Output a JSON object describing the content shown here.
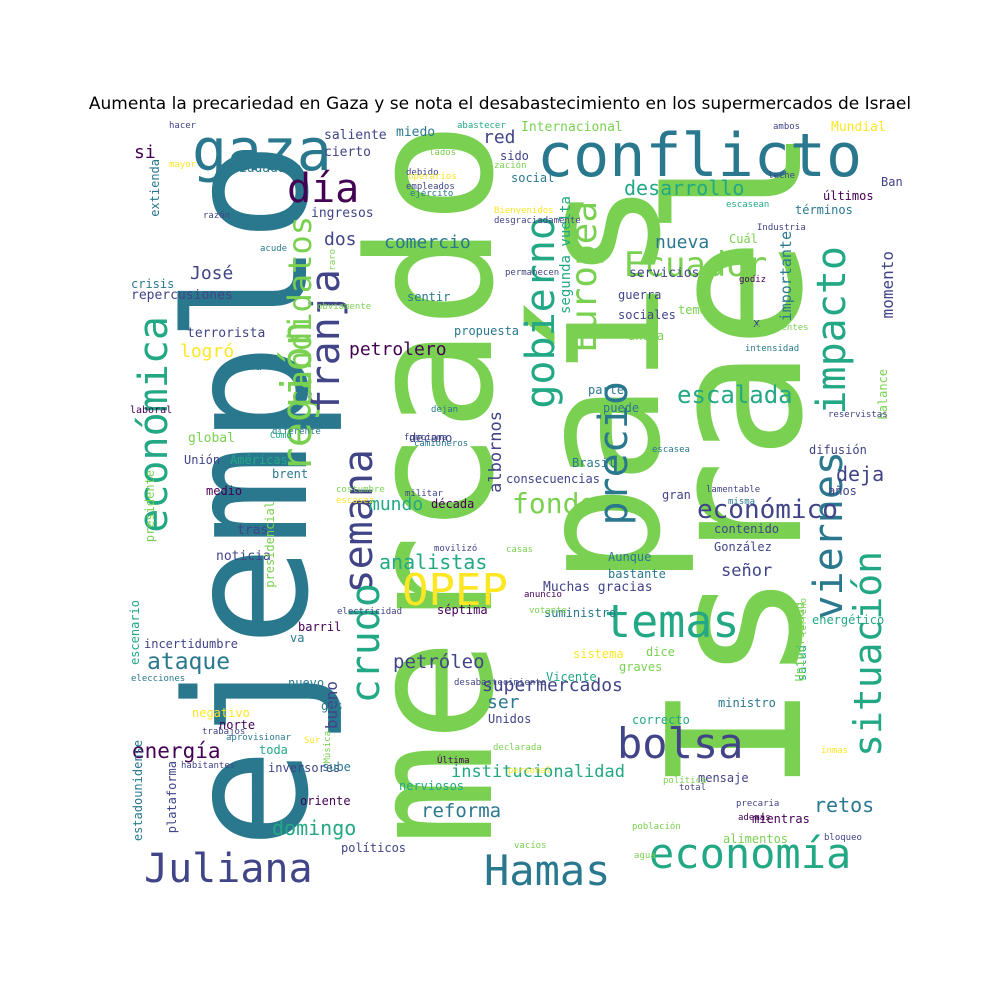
{
  "title": "Aumenta la precariedad en Gaza y se nota el desabastecimiento en los supermercados de Israel",
  "palette": {
    "dark_purple": "#440154",
    "indigo": "#414487",
    "blue": "#2a788e",
    "teal": "#22a884",
    "green": "#7ad151",
    "yellow": "#fde725"
  },
  "words": [
    {
      "text": "Israel",
      "color": "#7ad151"
    },
    {
      "text": "ejemplo",
      "color": "#2a788e"
    },
    {
      "text": "mercado",
      "color": "#7ad151"
    },
    {
      "text": "país",
      "color": "#7ad151"
    },
    {
      "text": "conflicto",
      "color": "#2a788e"
    },
    {
      "text": "gaza",
      "color": "#2a788e"
    },
    {
      "text": "día",
      "color": "#440154"
    },
    {
      "text": "económica",
      "color": "#22a884"
    },
    {
      "text": "región",
      "color": "#7ad151"
    },
    {
      "text": "franja",
      "color": "#414487"
    },
    {
      "text": "candidatos",
      "color": "#7ad151"
    },
    {
      "text": "semana",
      "color": "#414487"
    },
    {
      "text": "crudo",
      "color": "#22a884"
    },
    {
      "text": "OPEP",
      "color": "#fde725"
    },
    {
      "text": "gobierno",
      "color": "#22a884"
    },
    {
      "text": "Europea",
      "color": "#7ad151"
    },
    {
      "text": "precio",
      "color": "#2a788e"
    },
    {
      "text": "impacto",
      "color": "#22a884"
    },
    {
      "text": "viernes",
      "color": "#2a788e"
    },
    {
      "text": "situación",
      "color": "#22a884"
    },
    {
      "text": "temas",
      "color": "#22a884"
    },
    {
      "text": "bolsa",
      "color": "#414487"
    },
    {
      "text": "Hamas",
      "color": "#2a788e"
    },
    {
      "text": "economía",
      "color": "#22a884"
    },
    {
      "text": "Juliana",
      "color": "#414487"
    },
    {
      "text": "Ecuador",
      "color": "#7ad151"
    },
    {
      "text": "desarrollo",
      "color": "#22a884"
    },
    {
      "text": "fondo",
      "color": "#7ad151"
    },
    {
      "text": "escalada",
      "color": "#22a884"
    },
    {
      "text": "económico",
      "color": "#414487"
    },
    {
      "text": "ataque",
      "color": "#2a788e"
    },
    {
      "text": "energía",
      "color": "#440154"
    },
    {
      "text": "domingo",
      "color": "#22a884"
    },
    {
      "text": "reforma",
      "color": "#2a788e"
    },
    {
      "text": "supermercados",
      "color": "#414487"
    },
    {
      "text": "petróleo",
      "color": "#414487"
    },
    {
      "text": "analistas",
      "color": "#22a884"
    },
    {
      "text": "mundo",
      "color": "#22a884"
    },
    {
      "text": "petrolero",
      "color": "#440154"
    },
    {
      "text": "comercio",
      "color": "#2a788e"
    },
    {
      "text": "José",
      "color": "#414487"
    },
    {
      "text": "logró",
      "color": "#fde725"
    },
    {
      "text": "dos",
      "color": "#414487"
    },
    {
      "text": "si",
      "color": "#440154"
    },
    {
      "text": "red",
      "color": "#414487"
    },
    {
      "text": "nueva",
      "color": "#2a788e"
    },
    {
      "text": "deja",
      "color": "#414487"
    },
    {
      "text": "retos",
      "color": "#2a788e"
    },
    {
      "text": "señor",
      "color": "#414487"
    },
    {
      "text": "Muchas gracias",
      "color": "#414487"
    },
    {
      "text": "ser",
      "color": "#2a788e"
    },
    {
      "text": "bueno",
      "color": "#414487"
    },
    {
      "text": "institucionalidad",
      "color": "#22a884"
    },
    {
      "text": "albornos",
      "color": "#414487"
    },
    {
      "text": "momento",
      "color": "#414487"
    },
    {
      "text": "importante",
      "color": "#2a788e"
    },
    {
      "text": "segunda vuelta",
      "color": "#22a884"
    },
    {
      "text": "saliente",
      "color": "#414487"
    },
    {
      "text": "miedo",
      "color": "#2a788e"
    },
    {
      "text": "cierto",
      "color": "#414487"
    },
    {
      "text": "ciudadano",
      "color": "#2a788e"
    },
    {
      "text": "ingresos",
      "color": "#414487"
    },
    {
      "text": "crisis",
      "color": "#2a788e"
    },
    {
      "text": "repercusiones",
      "color": "#414487"
    },
    {
      "text": "terrorista",
      "color": "#414487"
    },
    {
      "text": "China",
      "color": "#2a788e"
    },
    {
      "text": "global",
      "color": "#7ad151"
    },
    {
      "text": "Unión",
      "color": "#414487"
    },
    {
      "text": "Américas",
      "color": "#22a884"
    },
    {
      "text": "brent",
      "color": "#2a788e"
    },
    {
      "text": "medio",
      "color": "#440154"
    },
    {
      "text": "tras",
      "color": "#414487"
    },
    {
      "text": "noticia",
      "color": "#414487"
    },
    {
      "text": "Internacional",
      "color": "#7ad151"
    },
    {
      "text": "Mundial",
      "color": "#fde725"
    },
    {
      "text": "sido",
      "color": "#414487"
    },
    {
      "text": "social",
      "color": "#2a788e"
    },
    {
      "text": "Banco",
      "color": "#414487"
    },
    {
      "text": "últimos",
      "color": "#440154"
    },
    {
      "text": "servicios",
      "color": "#414487"
    },
    {
      "text": "Cuál",
      "color": "#7ad151"
    },
    {
      "text": "sentir",
      "color": "#2a788e"
    },
    {
      "text": "guerra",
      "color": "#414487"
    },
    {
      "text": "sociales",
      "color": "#414487"
    },
    {
      "text": "propuesta",
      "color": "#2a788e"
    },
    {
      "text": "ahora",
      "color": "#7ad151"
    },
    {
      "text": "parte",
      "color": "#2a788e"
    },
    {
      "text": "puede",
      "color": "#2a788e"
    },
    {
      "text": "Brasil",
      "color": "#2a788e"
    },
    {
      "text": "decano",
      "color": "#414487"
    },
    {
      "text": "consecuencias",
      "color": "#414487"
    },
    {
      "text": "década",
      "color": "#440154"
    },
    {
      "text": "gran",
      "color": "#414487"
    },
    {
      "text": "contenido",
      "color": "#414487"
    },
    {
      "text": "González",
      "color": "#414487"
    },
    {
      "text": "Aunque",
      "color": "#2a788e"
    },
    {
      "text": "bastante",
      "color": "#2a788e"
    },
    {
      "text": "suministro",
      "color": "#2a788e"
    },
    {
      "text": "séptima",
      "color": "#440154"
    },
    {
      "text": "barril",
      "color": "#440154"
    },
    {
      "text": "va",
      "color": "#2a788e"
    },
    {
      "text": "incertidumbre",
      "color": "#414487"
    },
    {
      "text": "nuevo",
      "color": "#2a788e"
    },
    {
      "text": "negativo",
      "color": "#fde725"
    },
    {
      "text": "norte",
      "color": "#440154"
    },
    {
      "text": "gas",
      "color": "#2a788e"
    },
    {
      "text": "Unidos",
      "color": "#414487"
    },
    {
      "text": "toda",
      "color": "#22a884"
    },
    {
      "text": "inversores",
      "color": "#414487"
    },
    {
      "text": "nerviosos",
      "color": "#22a884"
    },
    {
      "text": "oriente",
      "color": "#440154"
    },
    {
      "text": "políticos",
      "color": "#414487"
    },
    {
      "text": "sube",
      "color": "#2a788e"
    },
    {
      "text": "sistema",
      "color": "#fde725"
    },
    {
      "text": "graves",
      "color": "#7ad151"
    },
    {
      "text": "dice",
      "color": "#7ad151"
    },
    {
      "text": "Vicente",
      "color": "#22a884"
    },
    {
      "text": "ministro",
      "color": "#2a788e"
    },
    {
      "text": "correcto",
      "color": "#22a884"
    },
    {
      "text": "mensaje",
      "color": "#414487"
    },
    {
      "text": "mientras",
      "color": "#440154"
    },
    {
      "text": "alimentos",
      "color": "#7ad151"
    },
    {
      "text": "energético",
      "color": "#22a884"
    },
    {
      "text": "años",
      "color": "#414487"
    },
    {
      "text": "difusión",
      "color": "#414487"
    },
    {
      "text": "temen",
      "color": "#7ad151"
    },
    {
      "text": "x",
      "color": "#414487"
    },
    {
      "text": "extienda",
      "color": "#2a788e"
    },
    {
      "text": "presidencial",
      "color": "#7ad151"
    },
    {
      "text": "presidente",
      "color": "#7ad151"
    },
    {
      "text": "escenario",
      "color": "#22a884"
    },
    {
      "text": "estadounidense",
      "color": "#2a788e"
    },
    {
      "text": "plataforma",
      "color": "#414487"
    },
    {
      "text": "salud",
      "color": "#22a884"
    },
    {
      "text": "balance",
      "color": "#7ad151"
    },
    {
      "text": "Universidad",
      "color": "#7ad151"
    },
    {
      "text": "términos",
      "color": "#2a788e"
    },
    {
      "text": "laboral",
      "color": "#440154"
    },
    {
      "text": "hacer",
      "color": "#414487"
    },
    {
      "text": "abastecer",
      "color": "#22a884"
    },
    {
      "text": "ambos",
      "color": "#414487"
    },
    {
      "text": "mayor",
      "color": "#fde725"
    },
    {
      "text": "lados",
      "color": "#7ad151"
    },
    {
      "text": "debido",
      "color": "#414487"
    },
    {
      "text": "empleados",
      "color": "#414487"
    },
    {
      "text": "ejército",
      "color": "#2a788e"
    },
    {
      "text": "zación",
      "color": "#7ad151"
    },
    {
      "text": "operarios",
      "color": "#fde725"
    },
    {
      "text": "leche",
      "color": "#414487"
    },
    {
      "text": "escasean",
      "color": "#22a884"
    },
    {
      "text": "Bienvenidos",
      "color": "#fde725"
    },
    {
      "text": "desgraciadamente",
      "color": "#414487"
    },
    {
      "text": "razón",
      "color": "#414487"
    },
    {
      "text": "acude",
      "color": "#2a788e"
    },
    {
      "text": "Industria",
      "color": "#414487"
    },
    {
      "text": "raro",
      "color": "#7ad151"
    },
    {
      "text": "permanecen",
      "color": "#414487"
    },
    {
      "text": "godiz",
      "color": "#440154"
    },
    {
      "text": "obviamente",
      "color": "#7ad151"
    },
    {
      "text": "suficientes",
      "color": "#7ad151"
    },
    {
      "text": "intensidad",
      "color": "#2a788e"
    },
    {
      "text": "dejan",
      "color": "#2a788e"
    },
    {
      "text": "diferente",
      "color": "#2a788e"
    },
    {
      "text": "Cómo",
      "color": "#22a884"
    },
    {
      "text": "funciona",
      "color": "#414487"
    },
    {
      "text": "camioneros",
      "color": "#2a788e"
    },
    {
      "text": "escasea",
      "color": "#2a788e"
    },
    {
      "text": "reservistas",
      "color": "#414487"
    },
    {
      "text": "misma",
      "color": "#2a788e"
    },
    {
      "text": "lamentable",
      "color": "#414487"
    },
    {
      "text": "costumbre",
      "color": "#7ad151"
    },
    {
      "text": "militar",
      "color": "#414487"
    },
    {
      "text": "escasez",
      "color": "#fde725"
    },
    {
      "text": "movilizó",
      "color": "#414487"
    },
    {
      "text": "casas",
      "color": "#7ad151"
    },
    {
      "text": "anuncio",
      "color": "#440154"
    },
    {
      "text": "electricidad",
      "color": "#414487"
    },
    {
      "text": "votante",
      "color": "#7ad151"
    },
    {
      "text": "terreno",
      "color": "#7ad151"
    },
    {
      "text": "elecciones",
      "color": "#2a788e"
    },
    {
      "text": "desabastecimiento",
      "color": "#414487"
    },
    {
      "text": "aprovisionar",
      "color": "#2a788e"
    },
    {
      "text": "trabajos",
      "color": "#414487"
    },
    {
      "text": "Música",
      "color": "#7ad151"
    },
    {
      "text": "Sur",
      "color": "#fde725"
    },
    {
      "text": "declarada",
      "color": "#7ad151"
    },
    {
      "text": "Última",
      "color": "#440154"
    },
    {
      "text": "inmas",
      "color": "#fde725"
    },
    {
      "text": "habitantes",
      "color": "#414487"
    },
    {
      "text": "política",
      "color": "#7ad151"
    },
    {
      "text": "personal",
      "color": "#fde725"
    },
    {
      "text": "total",
      "color": "#414487"
    },
    {
      "text": "precaria",
      "color": "#414487"
    },
    {
      "text": "además",
      "color": "#440154"
    },
    {
      "text": "bloqueo",
      "color": "#414487"
    },
    {
      "text": "población",
      "color": "#7ad151"
    },
    {
      "text": "vacíos",
      "color": "#7ad151"
    },
    {
      "text": "agua",
      "color": "#7ad151"
    },
    {
      "text": "árabe",
      "color": "#414487"
    }
  ]
}
